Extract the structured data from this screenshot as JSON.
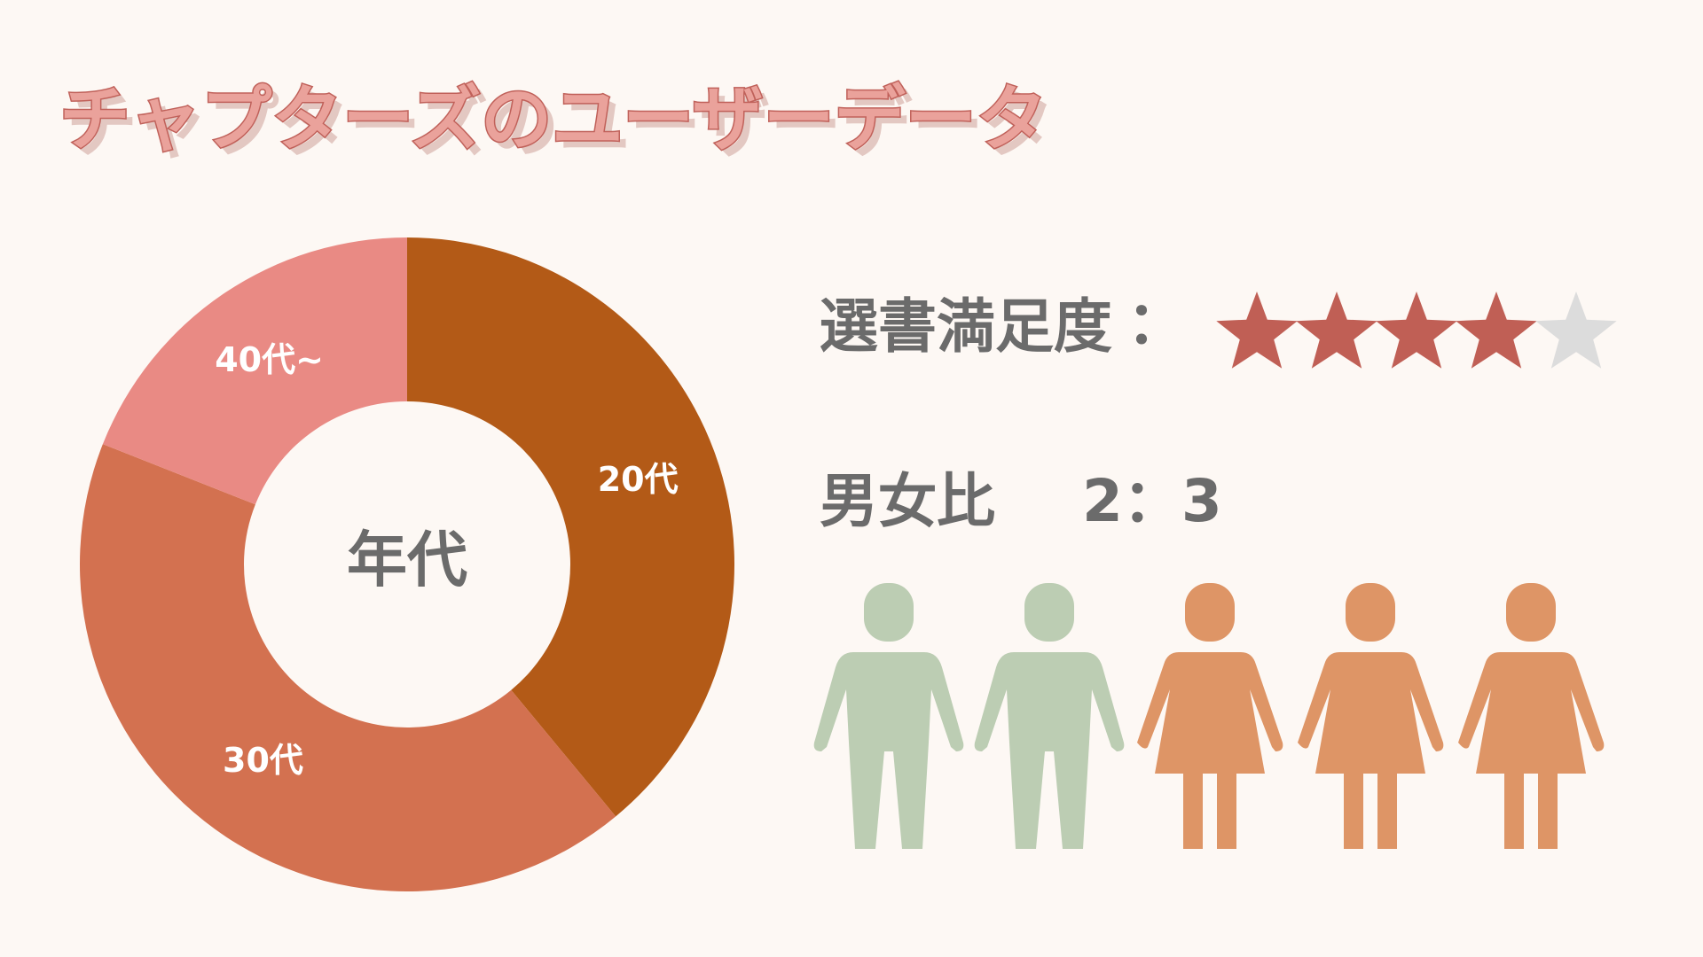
{
  "title": "チャプターズのユーザーデータ",
  "chart_data": {
    "type": "donut",
    "center_label": "年代",
    "categories": [
      "20代",
      "30代",
      "40代~"
    ],
    "values": [
      39,
      42,
      19
    ],
    "colors": [
      "#b35a17",
      "#d37150",
      "#e98a84"
    ]
  },
  "satisfaction": {
    "label": "選書満足度：",
    "rating": 4,
    "max": 5,
    "color": "#c05f55",
    "empty_color": "#dcdcdc"
  },
  "gender_ratio": {
    "label": "男女比",
    "ratio_label": "2：3",
    "male": 2,
    "female": 3,
    "male_color": "#bccdb3",
    "female_color": "#de9566"
  }
}
